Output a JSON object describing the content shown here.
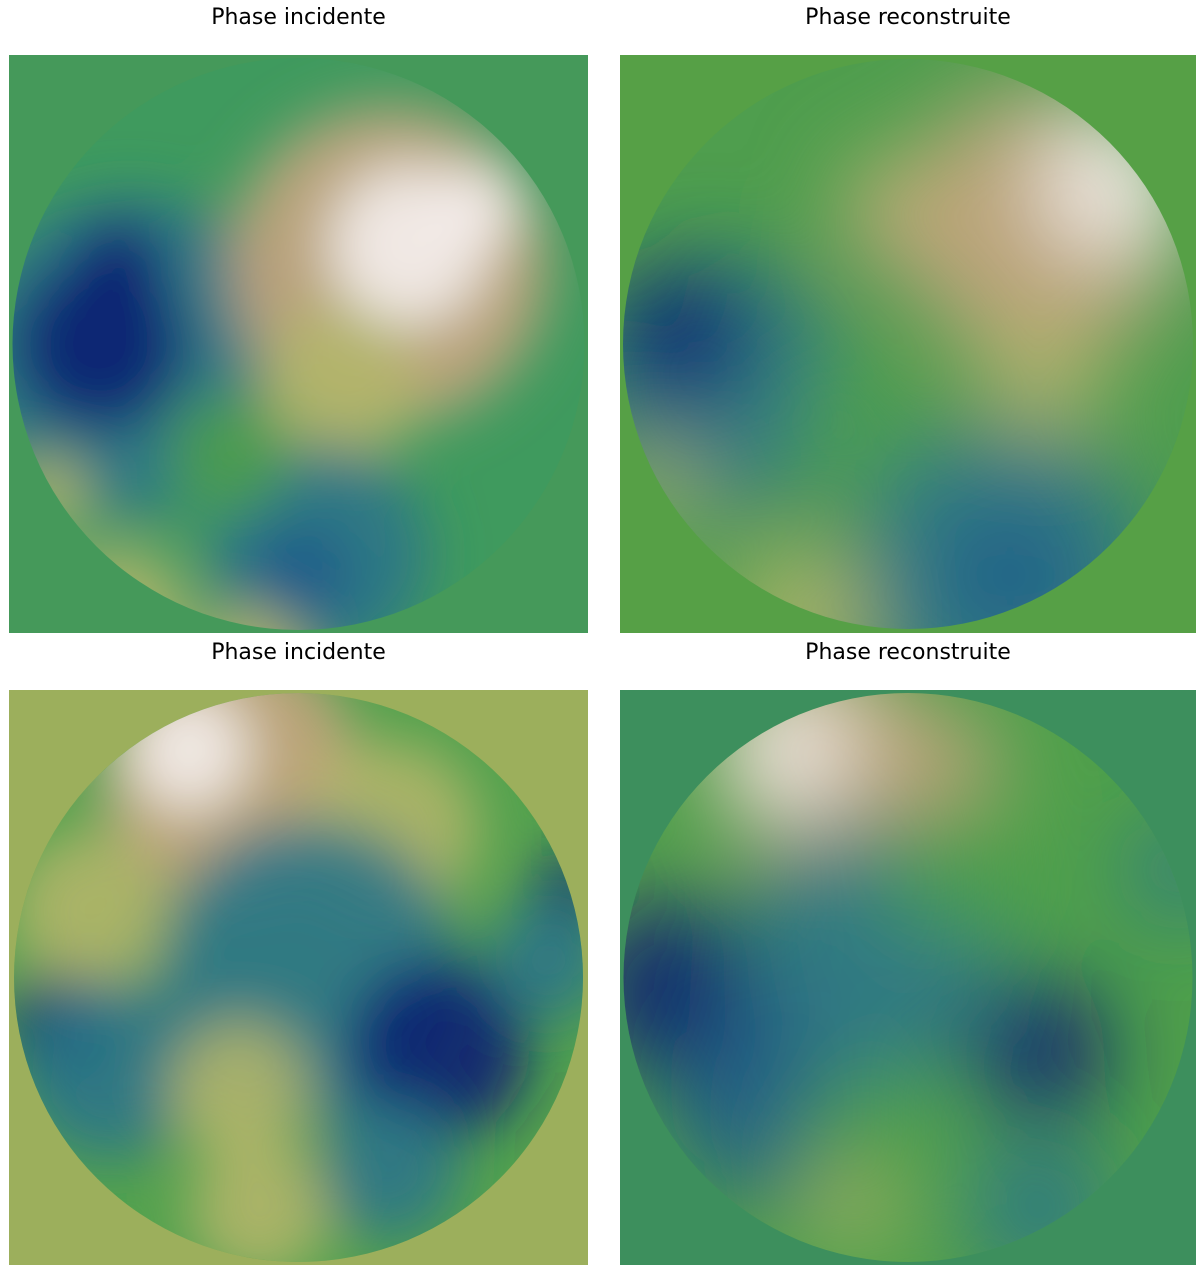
{
  "panels": [
    {
      "title": "Phase incidente"
    },
    {
      "title": "Phase reconstruite"
    },
    {
      "title": "Phase incidente"
    },
    {
      "title": "Phase reconstruite"
    }
  ]
}
